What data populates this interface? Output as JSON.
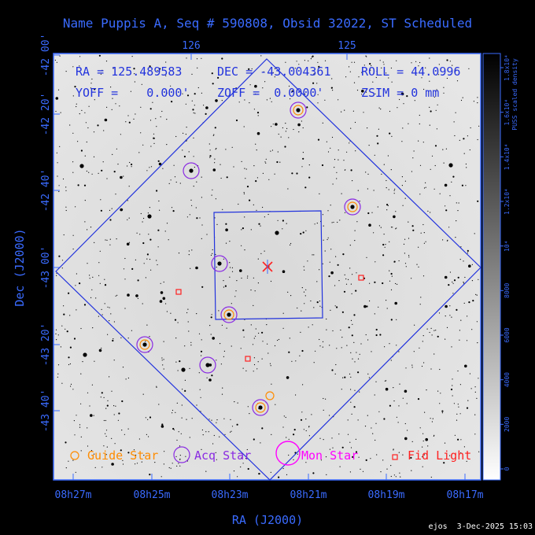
{
  "title": "Name Puppis A, Seq # 590808, Obsid 32022, ST Scheduled",
  "top_axis_ticks": [
    "126",
    "125"
  ],
  "left_axis_label": "Dec (J2000)",
  "bottom_axis_label": "RA (J2000)",
  "left_ticks": [
    "-42 00'",
    "-42 20'",
    "-42 40'",
    "-43 00'",
    "-43 20'",
    "-43 40'"
  ],
  "bottom_ticks": [
    "08h27m",
    "08h25m",
    "08h23m",
    "08h21m",
    "08h19m",
    "08h17m"
  ],
  "params": {
    "ra": "RA = 125.489583",
    "dec": "DEC = -43.004361",
    "roll": "ROLL = 44.0996",
    "yoff": "YOFF =    0.000'",
    "zoff": "ZOFF =  0.0000'",
    "zsim": "ZSIM = 0 mm"
  },
  "legend": {
    "guide": "Guide Star",
    "acq": "Acq Star",
    "mon": "Mon Star",
    "fid": "Fid Light"
  },
  "colorbar": {
    "label_line1": "PUSS scaled density",
    "ticks": [
      "0",
      "2000",
      "4000",
      "6000",
      "8000",
      "10⁴",
      "1.2x10⁴",
      "1.4x10⁴",
      "1.6x10⁴",
      "1.8x10⁴"
    ]
  },
  "footer": "ejos  3-Dec-2025 15:03",
  "colors": {
    "axis": "#3a6bff",
    "guide": "#ff8c00",
    "acq": "#8a2be2",
    "mon": "#ff00ff",
    "fid": "#ff2020"
  }
}
